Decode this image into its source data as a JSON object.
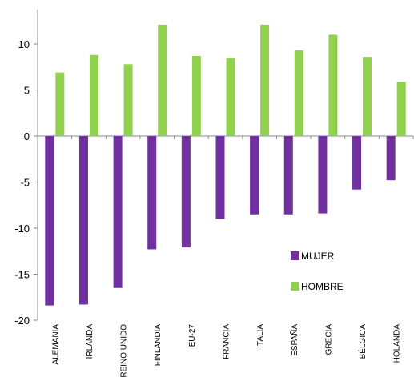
{
  "chart_data": {
    "type": "bar",
    "categories": [
      "ALEMANIA",
      "IRLANDA",
      "REINO UNIDO",
      "FINLANDIA",
      "EU-27",
      "FRANCIA",
      "ITALIA",
      "ESPAÑA",
      "GRECIA",
      "BÉLGICA",
      "HOLANDA"
    ],
    "series": [
      {
        "name": "MUJER",
        "color": "#7030a0",
        "values": [
          -18.4,
          -18.3,
          -16.5,
          -12.3,
          -12.1,
          -9.0,
          -8.5,
          -8.5,
          -8.4,
          -5.8,
          -4.8
        ]
      },
      {
        "name": "HOMBRE",
        "color": "#92d050",
        "values": [
          6.9,
          8.8,
          7.8,
          12.1,
          8.7,
          8.5,
          12.1,
          9.3,
          11.0,
          8.6,
          5.9
        ]
      }
    ],
    "yticks": [
      "10",
      "5",
      "0",
      "-5",
      "-10",
      "-15",
      "-20"
    ],
    "ylim": [
      -20,
      14
    ],
    "grid": false,
    "legend": "inside lower right"
  }
}
